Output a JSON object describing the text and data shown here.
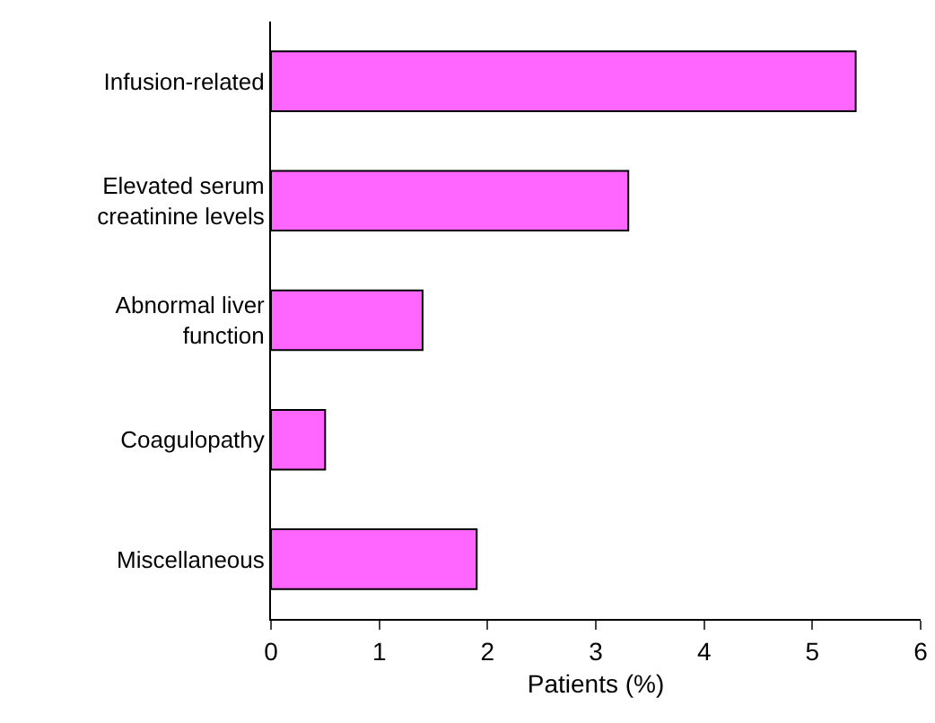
{
  "chart_data": {
    "type": "bar",
    "orientation": "horizontal",
    "xlabel": "Patients (%)",
    "categories": [
      "Infusion-related",
      "Elevated serum creatinine levels",
      "Abnormal liver function",
      "Coagulopathy",
      "Miscellaneous"
    ],
    "values": [
      5.4,
      3.3,
      1.4,
      0.5,
      1.9
    ],
    "color": "#ff66ff",
    "xlim": [
      0,
      6
    ],
    "xticks": [
      0,
      1,
      2,
      3,
      4,
      5,
      6
    ]
  }
}
